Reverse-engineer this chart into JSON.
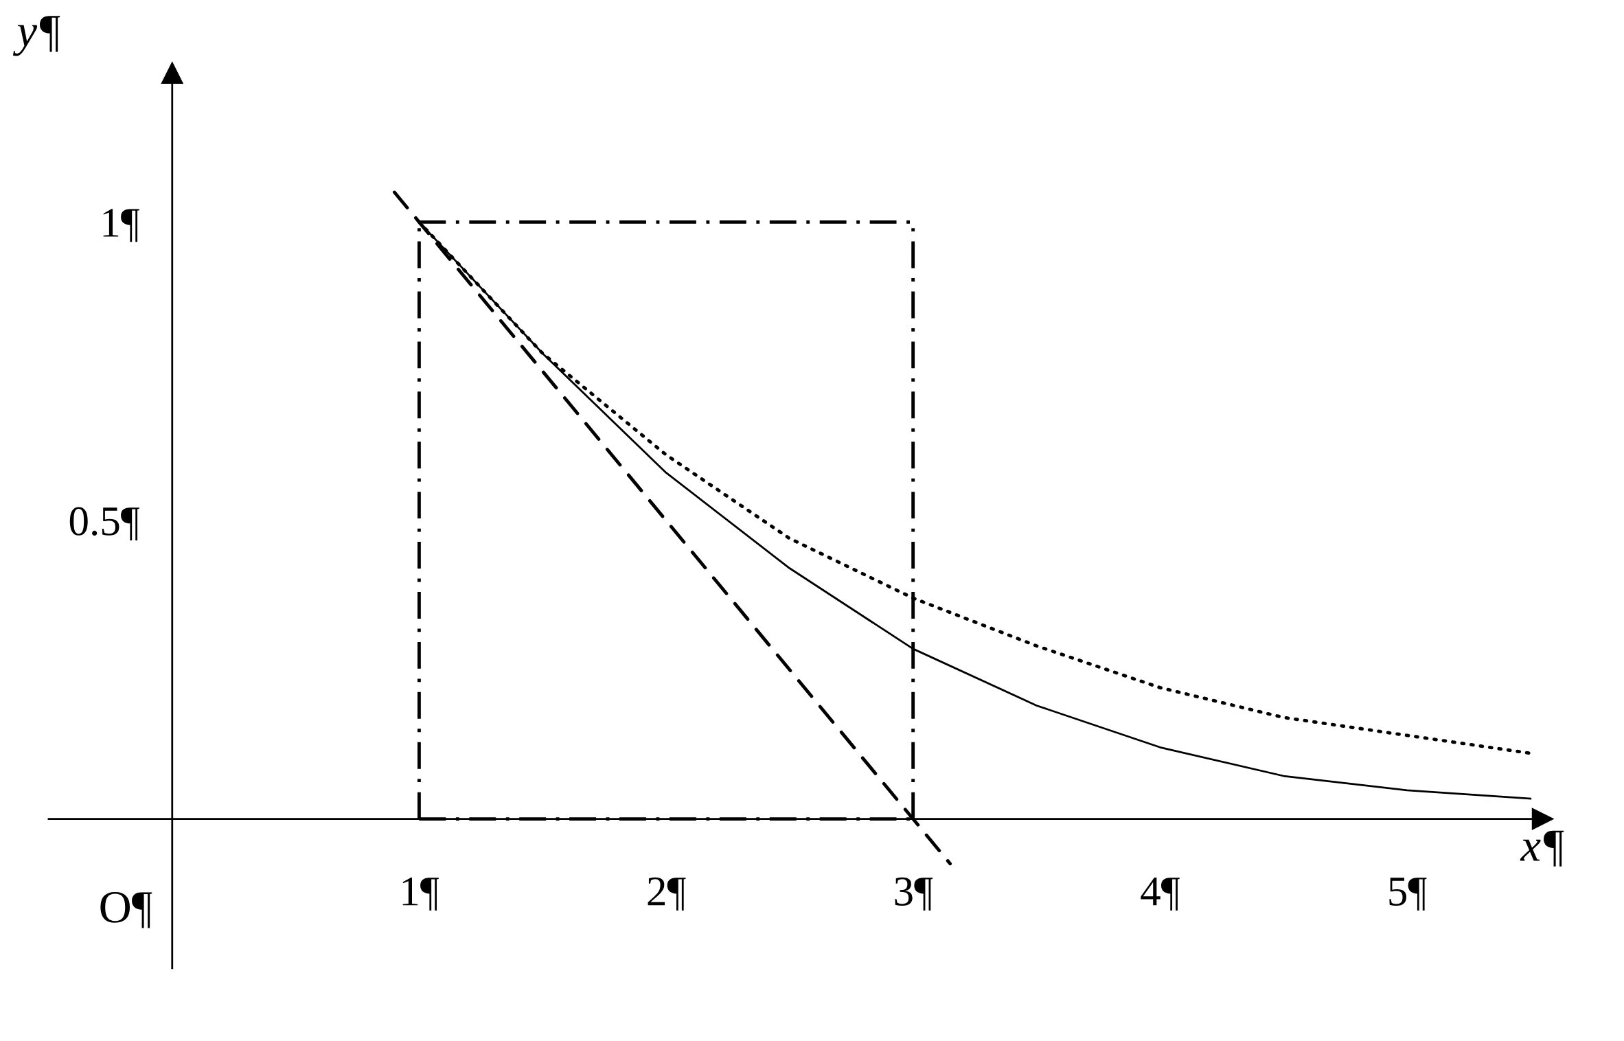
{
  "chart_data": {
    "type": "line",
    "xlabel": "x¶",
    "ylabel": "y¶",
    "xlim": [
      -0.5,
      5.55
    ],
    "ylim": [
      -0.25,
      1.25
    ],
    "xticks": [
      {
        "value": 1,
        "label": "1¶"
      },
      {
        "value": 2,
        "label": "2¶"
      },
      {
        "value": 3,
        "label": "3¶"
      },
      {
        "value": 4,
        "label": "4¶"
      },
      {
        "value": 5,
        "label": "5¶"
      }
    ],
    "yticks": [
      {
        "value": 0.5,
        "label": "0.5¶"
      },
      {
        "value": 1,
        "label": "1¶"
      }
    ],
    "grid": false,
    "legend": false,
    "annotations": [
      "O¶"
    ],
    "series": [
      {
        "color": "#000000",
        "line_style": "solid",
        "x": [
          1,
          1.5,
          2,
          2.5,
          3,
          3.5,
          4,
          4.5,
          5,
          5.5
        ],
        "values": [
          1.0,
          0.78,
          0.58,
          0.42,
          0.285,
          0.19,
          0.12,
          0.072,
          0.048,
          0.034
        ]
      },
      {
        "color": "#000000",
        "line_style": "dotted",
        "x": [
          1,
          1.5,
          2,
          2.5,
          3,
          3.5,
          4,
          4.5,
          5,
          5.5
        ],
        "values": [
          1.0,
          0.78,
          0.61,
          0.47,
          0.37,
          0.29,
          0.22,
          0.17,
          0.14,
          0.11
        ]
      },
      {
        "color": "#000000",
        "line_style": "dashed",
        "x": [
          0.9,
          3.15
        ],
        "values": [
          1.05,
          -0.075
        ]
      }
    ],
    "ref_lines": [
      {
        "axis": "x",
        "value": 1,
        "color": "#000000",
        "line_style": "dashdot"
      },
      {
        "axis": "x",
        "value": 3,
        "color": "#000000",
        "line_style": "dashdot"
      },
      {
        "axis": "y",
        "value": 1,
        "color": "#000000",
        "line_style": "dashdot"
      },
      {
        "axis": "y",
        "value": 0,
        "color": "#000000",
        "line_style": "dashdot"
      }
    ]
  }
}
